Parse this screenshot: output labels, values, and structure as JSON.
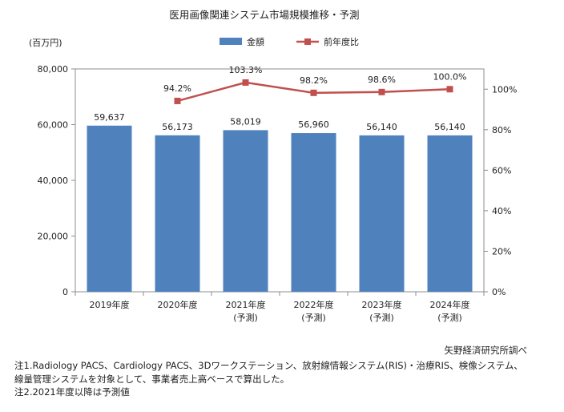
{
  "chart_data": {
    "type": "bar+line",
    "title": "医用画像関連システム市場規模推移・予測",
    "y_unit_label": "(百万円)",
    "categories": [
      {
        "label": "2019年度",
        "sub": ""
      },
      {
        "label": "2020年度",
        "sub": ""
      },
      {
        "label": "2021年度",
        "sub": "(予測)"
      },
      {
        "label": "2022年度",
        "sub": "(予測)"
      },
      {
        "label": "2023年度",
        "sub": "(予測)"
      },
      {
        "label": "2024年度",
        "sub": "(予測)"
      }
    ],
    "series": [
      {
        "name": "金額",
        "type": "bar",
        "axis": "left",
        "color": "#4f81bd",
        "values": [
          59637,
          56173,
          58019,
          56960,
          56140,
          56140
        ],
        "labels": [
          "59,637",
          "56,173",
          "58,019",
          "56,960",
          "56,140",
          "56,140"
        ]
      },
      {
        "name": "前年度比",
        "type": "line",
        "axis": "right",
        "color": "#c0504d",
        "values": [
          null,
          94.2,
          103.3,
          98.2,
          98.6,
          100.0
        ],
        "labels": [
          "",
          "94.2%",
          "103.3%",
          "98.2%",
          "98.6%",
          "100.0%"
        ]
      }
    ],
    "y_left": {
      "min": 0,
      "max": 80000,
      "ticks": [
        0,
        20000,
        40000,
        60000,
        80000
      ],
      "tick_labels": [
        "0",
        "20,000",
        "40,000",
        "60,000",
        "80,000"
      ]
    },
    "y_right": {
      "min": 0,
      "max": 110,
      "ticks": [
        0,
        20,
        40,
        60,
        80,
        100
      ],
      "tick_labels": [
        "0%",
        "20%",
        "40%",
        "60%",
        "80%",
        "100%"
      ]
    },
    "legend_position": "top-center",
    "grid": false
  },
  "source": "矢野経済研究所調べ",
  "notes": [
    "注1.Radiology PACS、Cardiology PACS、3Dワークステーション、放射線情報システム(RIS)・治療RIS、検像システム、",
    "線量管理システムを対象として、事業者売上高ベースで算出した。",
    "注2.2021年度以降は予測値"
  ]
}
